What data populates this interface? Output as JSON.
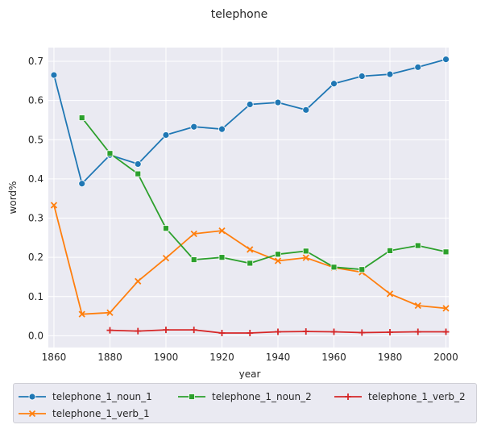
{
  "chart_data": {
    "type": "line",
    "title": "telephone",
    "xlabel": "year",
    "ylabel": "word%",
    "xlim": [
      1858,
      2001
    ],
    "ylim": [
      -0.03,
      0.735
    ],
    "xticks": [
      1860,
      1880,
      1900,
      1920,
      1940,
      1960,
      1980,
      2000
    ],
    "yticks": [
      0.0,
      0.1,
      0.2,
      0.3,
      0.4,
      0.5,
      0.6,
      0.7
    ],
    "ytick_labels": [
      "0.0",
      "0.1",
      "0.2",
      "0.3",
      "0.4",
      "0.5",
      "0.6",
      "0.7"
    ],
    "grid": true,
    "legend_position": "below",
    "series": [
      {
        "name": "telephone_1_noun_1",
        "color": "#1f77b4",
        "marker": "circle",
        "x": [
          1860,
          1870,
          1880,
          1890,
          1900,
          1910,
          1920,
          1930,
          1940,
          1950,
          1960,
          1970,
          1980,
          1990,
          2000
        ],
        "values": [
          0.665,
          0.388,
          0.461,
          0.438,
          0.512,
          0.533,
          0.527,
          0.59,
          0.595,
          0.576,
          0.643,
          0.662,
          0.667,
          0.685,
          0.705
        ]
      },
      {
        "name": "telephone_1_verb_1",
        "color": "#ff7f0e",
        "marker": "x",
        "x": [
          1860,
          1870,
          1880,
          1890,
          1900,
          1910,
          1920,
          1930,
          1940,
          1950,
          1960,
          1970,
          1980,
          1990,
          2000
        ],
        "values": [
          0.333,
          0.055,
          0.059,
          0.139,
          0.198,
          0.26,
          0.268,
          0.22,
          0.191,
          0.199,
          0.174,
          0.162,
          0.107,
          0.077,
          0.07
        ]
      },
      {
        "name": "telephone_1_noun_2",
        "color": "#2ca02c",
        "marker": "square",
        "x": [
          1870,
          1880,
          1890,
          1900,
          1910,
          1920,
          1930,
          1940,
          1950,
          1960,
          1970,
          1980,
          1990,
          2000
        ],
        "values": [
          0.556,
          0.465,
          0.413,
          0.274,
          0.194,
          0.2,
          0.185,
          0.208,
          0.216,
          0.175,
          0.169,
          0.217,
          0.23,
          0.214
        ]
      },
      {
        "name": "telephone_1_verb_2",
        "color": "#d62728",
        "marker": "plus",
        "x": [
          1880,
          1890,
          1900,
          1910,
          1920,
          1930,
          1940,
          1950,
          1960,
          1970,
          1980,
          1990,
          2000
        ],
        "values": [
          0.014,
          0.012,
          0.015,
          0.015,
          0.007,
          0.007,
          0.01,
          0.011,
          0.01,
          0.008,
          0.009,
          0.01,
          0.01
        ]
      }
    ]
  }
}
